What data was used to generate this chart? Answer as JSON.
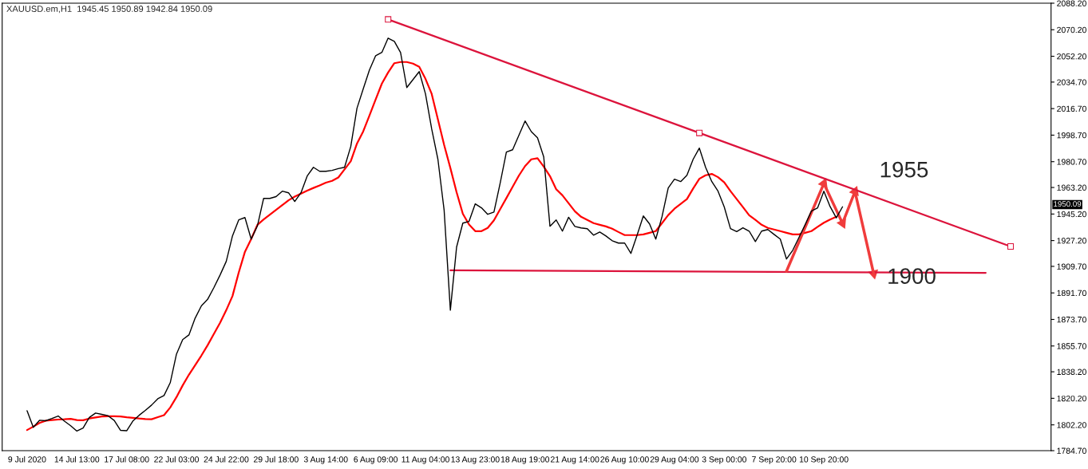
{
  "chart_data": {
    "type": "line",
    "title": "XAUUSD.em,H1  1945.45 1950.89 1942.84 1950.09",
    "categories": [
      "9 Jul 2020",
      null,
      null,
      null,
      null,
      null,
      null,
      null,
      "14 Jul 13:00",
      null,
      null,
      null,
      null,
      null,
      null,
      null,
      "17 Jul 08:00",
      null,
      null,
      null,
      null,
      null,
      null,
      null,
      "22 Jul 03:00",
      null,
      null,
      null,
      null,
      null,
      null,
      null,
      "24 Jul 22:00",
      null,
      null,
      null,
      null,
      null,
      null,
      null,
      "29 Jul 18:00",
      null,
      null,
      null,
      null,
      null,
      null,
      null,
      "3 Aug 14:00",
      null,
      null,
      null,
      null,
      null,
      null,
      null,
      "6 Aug 09:00",
      null,
      null,
      null,
      null,
      null,
      null,
      null,
      "11 Aug 04:00",
      null,
      null,
      null,
      null,
      null,
      null,
      null,
      "13 Aug 23:00",
      null,
      null,
      null,
      null,
      null,
      null,
      null,
      "18 Aug 19:00",
      null,
      null,
      null,
      null,
      null,
      null,
      null,
      "21 Aug 14:00",
      null,
      null,
      null,
      null,
      null,
      null,
      null,
      "26 Aug 10:00",
      null,
      null,
      null,
      null,
      null,
      null,
      null,
      "29 Aug 04:00",
      null,
      null,
      null,
      null,
      null,
      null,
      null,
      "3 Sep 00:00",
      null,
      null,
      null,
      null,
      null,
      null,
      null,
      "7 Sep 20:00",
      null,
      null,
      null,
      null,
      null,
      null,
      null,
      "10 Sep 20:00",
      null,
      null,
      null,
      null,
      null,
      null,
      null,
      null,
      null,
      null,
      null,
      null,
      null,
      null,
      null,
      null,
      null,
      null,
      null,
      null,
      null,
      null,
      null,
      null,
      null,
      null,
      null,
      null,
      null,
      null,
      null,
      null,
      null,
      null,
      null,
      null
    ],
    "ylim": [
      1784.7,
      2088.2
    ],
    "yticks": [
      {
        "value": 2088.2,
        "label": "2088.20"
      },
      {
        "value": 2070.2,
        "label": "2070.20"
      },
      {
        "value": 2052.2,
        "label": "2052.20"
      },
      {
        "value": 2034.7,
        "label": "2034.70"
      },
      {
        "value": 2016.7,
        "label": "2016.70"
      },
      {
        "value": 1998.7,
        "label": "1998.70"
      },
      {
        "value": 1980.7,
        "label": "1980.70"
      },
      {
        "value": 1963.2,
        "label": "1963.20"
      },
      {
        "value": 1945.2,
        "label": "1945.20"
      },
      {
        "value": 1927.2,
        "label": "1927.20"
      },
      {
        "value": 1909.7,
        "label": "1909.70"
      },
      {
        "value": 1891.7,
        "label": "1891.70"
      },
      {
        "value": 1873.7,
        "label": "1873.70"
      },
      {
        "value": 1855.7,
        "label": "1855.70"
      },
      {
        "value": 1838.2,
        "label": "1838.20"
      },
      {
        "value": 1820.2,
        "label": "1820.20"
      },
      {
        "value": 1802.2,
        "label": "1802.20"
      },
      {
        "value": 1784.7,
        "label": "1784.70"
      }
    ],
    "grid": false,
    "series": [
      {
        "color": "#000000",
        "values": [
          1811.8,
          1800.5,
          1805.3,
          1805.0,
          1806.5,
          1808.2,
          1804.7,
          1801.6,
          1798.0,
          1800.0,
          1807.2,
          1810.2,
          1809.3,
          1808.4,
          1805.2,
          1798.5,
          1798.2,
          1804.8,
          1808.7,
          1812.0,
          1815.6,
          1819.9,
          1822.1,
          1830.8,
          1850.2,
          1860.0,
          1863.2,
          1874.6,
          1882.9,
          1887.3,
          1895.2,
          1903.8,
          1913.1,
          1930.4,
          1941.2,
          1942.8,
          1928.2,
          1937.1,
          1955.8,
          1955.8,
          1957.0,
          1960.7,
          1959.6,
          1953.7,
          1959.6,
          1971.0,
          1976.9,
          1974.2,
          1974.2,
          1974.8,
          1976.0,
          1976.9,
          1991.0,
          2017.0,
          2030.0,
          2042.9,
          2052.6,
          2054.8,
          2064.5,
          2062.3,
          2054.7,
          2031.0,
          2036.4,
          2041.8,
          2026.7,
          2002.9,
          1982.3,
          1947.7,
          1880.0,
          1922.8,
          1939.0,
          1940.2,
          1952.1,
          1949.4,
          1945.0,
          1946.5,
          1966.1,
          1987.2,
          1988.8,
          1998.5,
          2008.3,
          2001.1,
          1996.9,
          1983.9,
          1936.9,
          1941.2,
          1933.6,
          1943.0,
          1936.8,
          1935.8,
          1935.2,
          1930.9,
          1933.0,
          1930.3,
          1927.1,
          1925.5,
          1925.5,
          1918.5,
          1930.9,
          1943.9,
          1938.5,
          1928.2,
          1943.4,
          1962.9,
          1968.8,
          1967.2,
          1971.5,
          1982.3,
          1989.9,
          1976.9,
          1967.2,
          1960.7,
          1950.0,
          1935.3,
          1933.3,
          1935.8,
          1933.6,
          1926.5,
          1933.6,
          1934.7,
          1931.4,
          1928.2,
          1914.7,
          1920.6,
          1929.3,
          1938.0,
          1947.2,
          1949.4,
          1960.7,
          1950.3,
          1942.6,
          1950.1,
          null,
          null,
          null,
          null,
          null,
          null,
          null,
          null,
          null,
          null,
          null,
          null,
          null,
          null,
          null,
          null,
          null,
          null,
          null,
          null,
          null,
          null,
          null,
          null,
          null,
          null,
          null,
          null,
          null,
          null,
          null,
          null,
          null
        ]
      },
      {
        "color": "#ff0000",
        "values": [
          1798.7,
          1801,
          1803.5,
          1805,
          1805.5,
          1805.8,
          1806,
          1806.3,
          1805.5,
          1805.3,
          1806.5,
          1807.2,
          1807.9,
          1808,
          1808,
          1807.9,
          1807.4,
          1807,
          1806.5,
          1806.1,
          1806,
          1807.4,
          1808.8,
          1814,
          1821,
          1829,
          1836.2,
          1842.7,
          1849.2,
          1856.2,
          1863.8,
          1871.4,
          1880,
          1889.6,
          1905.5,
          1919.6,
          1928.2,
          1937.9,
          1941.5,
          1944.8,
          1948,
          1951.2,
          1954.5,
          1957,
          1959.1,
          1961.1,
          1962.9,
          1964.6,
          1966.5,
          1967.7,
          1970,
          1975.5,
          1981,
          1993,
          2001.3,
          2012,
          2022.9,
          2033.7,
          2041.2,
          2047.5,
          2048.3,
          2048.3,
          2047.2,
          2045.1,
          2036.9,
          2026.7,
          2009.4,
          1992,
          1976.4,
          1960,
          1945.4,
          1938.1,
          1933.6,
          1933.6,
          1935.8,
          1940.9,
          1948.5,
          1956,
          1963.6,
          1971.2,
          1977.7,
          1982.3,
          1983,
          1977.4,
          1970.9,
          1962,
          1957.9,
          1952.5,
          1947.1,
          1943.3,
          1941.2,
          1939,
          1937.9,
          1936.8,
          1935.2,
          1933,
          1930.9,
          1930.9,
          1930.9,
          1931.4,
          1932.5,
          1933.6,
          1939,
          1944.5,
          1948.8,
          1952.1,
          1955.3,
          1962.5,
          1969.1,
          1971.5,
          1972.4,
          1970.2,
          1966.7,
          1960.7,
          1955.3,
          1949.9,
          1944.4,
          1941.2,
          1937.9,
          1935.8,
          1934.7,
          1933.6,
          1932.5,
          1931.4,
          1931.4,
          1932.5,
          1933.6,
          1936.5,
          1939.3,
          1941.5,
          1943.3,
          null,
          null,
          null,
          null,
          null,
          null,
          null,
          null,
          null,
          null,
          null,
          null,
          null,
          null,
          null,
          null,
          null,
          null,
          null,
          null,
          null,
          null,
          null,
          null,
          null,
          null,
          null,
          null,
          null,
          null,
          null,
          null,
          null,
          null
        ]
      },
      {
        "color": "#dc143c",
        "marker": "square",
        "values": [
          null,
          null,
          null,
          null,
          null,
          null,
          null,
          null,
          null,
          null,
          null,
          null,
          null,
          null,
          null,
          null,
          null,
          null,
          null,
          null,
          null,
          null,
          null,
          null,
          null,
          null,
          null,
          null,
          null,
          null,
          null,
          null,
          null,
          null,
          null,
          null,
          null,
          null,
          null,
          null,
          null,
          null,
          null,
          null,
          null,
          null,
          null,
          null,
          null,
          null,
          null,
          null,
          null,
          null,
          null,
          null,
          null,
          null,
          2077.2,
          null,
          null,
          null,
          null,
          null,
          null,
          null,
          null,
          null,
          null,
          null,
          null,
          null,
          null,
          null,
          null,
          null,
          null,
          null,
          null,
          null,
          null,
          null,
          null,
          null,
          null,
          null,
          null,
          null,
          null,
          null,
          null,
          null,
          null,
          null,
          null,
          null,
          null,
          null,
          null,
          null,
          null,
          null,
          null,
          null,
          null,
          null,
          null,
          null,
          2000.2,
          null,
          null,
          null,
          null,
          null,
          null,
          null,
          null,
          null,
          null,
          null,
          null,
          null,
          null,
          null,
          null,
          null,
          null,
          null,
          null,
          null,
          null,
          null,
          null,
          null,
          null,
          null,
          null,
          null,
          null,
          null,
          null,
          null,
          null,
          null,
          null,
          null,
          null,
          null,
          null,
          null,
          null,
          null,
          null,
          null,
          null,
          null,
          null,
          null,
          1923.2,
          null,
          null,
          null,
          null,
          null,
          null
        ]
      },
      {
        "color": "#dc143c",
        "values": [
          null,
          null,
          null,
          null,
          null,
          null,
          null,
          null,
          null,
          null,
          null,
          null,
          null,
          null,
          null,
          null,
          null,
          null,
          null,
          null,
          null,
          null,
          null,
          null,
          null,
          null,
          null,
          null,
          null,
          null,
          null,
          null,
          null,
          null,
          null,
          null,
          null,
          null,
          null,
          null,
          null,
          null,
          null,
          null,
          null,
          null,
          null,
          null,
          null,
          null,
          null,
          null,
          null,
          null,
          null,
          null,
          null,
          null,
          null,
          null,
          null,
          null,
          null,
          null,
          null,
          null,
          null,
          null,
          1907.0,
          null,
          null,
          null,
          null,
          null,
          null,
          null,
          null,
          null,
          null,
          null,
          null,
          null,
          null,
          null,
          null,
          null,
          null,
          null,
          null,
          null,
          null,
          null,
          null,
          null,
          null,
          null,
          null,
          null,
          null,
          null,
          null,
          null,
          null,
          null,
          null,
          null,
          null,
          null,
          null,
          null,
          null,
          null,
          null,
          null,
          null,
          null,
          null,
          null,
          null,
          null,
          null,
          null,
          null,
          null,
          null,
          null,
          null,
          null,
          null,
          null,
          null,
          null,
          null,
          null,
          null,
          null,
          null,
          null,
          null,
          null,
          null,
          null,
          null,
          null,
          null,
          null,
          null,
          null,
          null,
          null,
          null,
          null,
          null,
          null,
          1905.3,
          null,
          null,
          null,
          null,
          null,
          null,
          null,
          null,
          null,
          null
        ]
      },
      {
        "color": "#f03c3c",
        "marker": "triangle",
        "values": [
          null,
          null,
          null,
          null,
          null,
          null,
          null,
          null,
          null,
          null,
          null,
          null,
          null,
          null,
          null,
          null,
          null,
          null,
          null,
          null,
          null,
          null,
          null,
          null,
          null,
          null,
          null,
          null,
          null,
          null,
          null,
          null,
          null,
          null,
          null,
          null,
          null,
          null,
          null,
          null,
          null,
          null,
          null,
          null,
          null,
          null,
          null,
          null,
          null,
          null,
          null,
          null,
          null,
          null,
          null,
          null,
          null,
          null,
          null,
          null,
          null,
          null,
          null,
          null,
          null,
          null,
          null,
          null,
          null,
          null,
          null,
          null,
          null,
          null,
          null,
          null,
          null,
          null,
          null,
          null,
          null,
          null,
          null,
          null,
          null,
          null,
          null,
          null,
          null,
          null,
          null,
          null,
          null,
          null,
          null,
          null,
          null,
          null,
          null,
          null,
          null,
          null,
          null,
          null,
          null,
          null,
          null,
          null,
          null,
          null,
          null,
          null,
          null,
          null,
          null,
          null,
          null,
          null,
          null,
          null,
          null,
          null,
          1906.4,
          null,
          null,
          null,
          null,
          null,
          1965.9,
          null,
          null,
          1938.9,
          null,
          1960.5,
          null,
          null,
          1904.8,
          null,
          null,
          null,
          null,
          null,
          null,
          null,
          null,
          null,
          null,
          null,
          null,
          null,
          null,
          null,
          null,
          null,
          null,
          null,
          null,
          null,
          null,
          null,
          null,
          null,
          null,
          null,
          null
        ]
      }
    ],
    "annotations": [
      "1950.09",
      "1955",
      {
        "text": "1900",
        "y": 1904.8
      }
    ]
  }
}
